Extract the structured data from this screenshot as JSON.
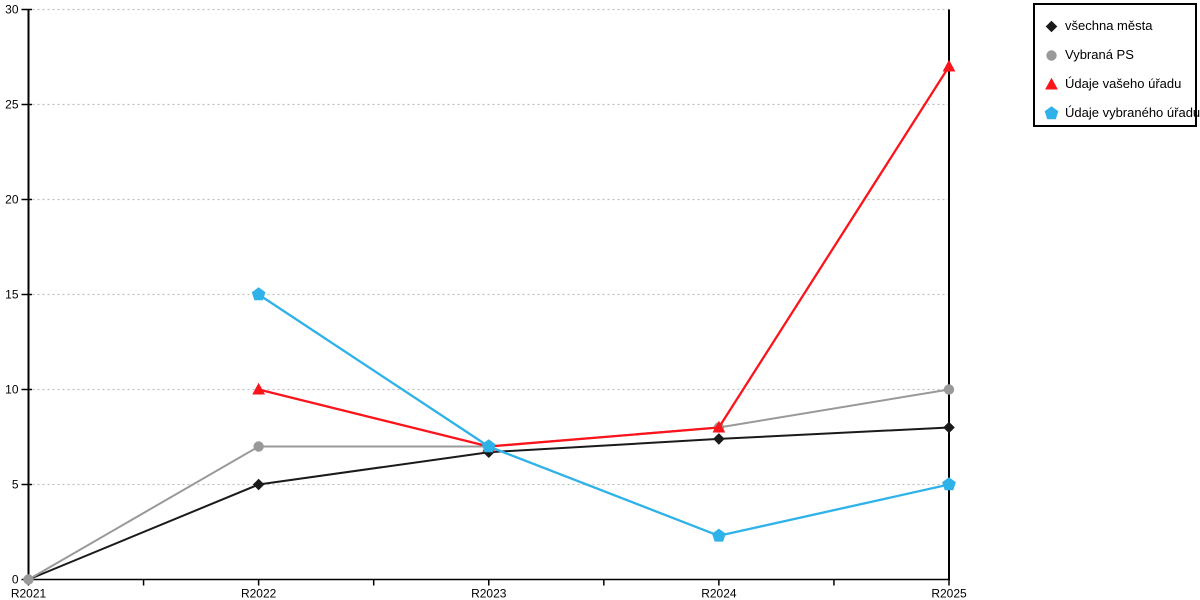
{
  "page": {
    "background": "#ffffff"
  },
  "chart_data": {
    "type": "line",
    "title": "",
    "xlabel": "",
    "ylabel": "",
    "x_categories": [
      "R2021",
      "R2022",
      "R2023",
      "R2024",
      "R2025"
    ],
    "y_axis": {
      "min": 0,
      "max": 30,
      "tick_step": 5,
      "tick_labels": [
        "0",
        "5",
        "10",
        "15",
        "20",
        "25",
        "30"
      ]
    },
    "grid": {
      "horizontal": "dotted",
      "color": "#bfbfbf"
    },
    "axis_color": "#000000",
    "legend": {
      "position": "top-right",
      "border_color": "#000000",
      "background": "#ffffff"
    },
    "series": [
      {
        "name": "všechna města",
        "color": "#1a1a1a",
        "marker": "diamond",
        "line_width": 2,
        "values": [
          0,
          5,
          6.7,
          7.4,
          8
        ]
      },
      {
        "name": "Vybraná PS",
        "color": "#999999",
        "marker": "circle",
        "line_width": 2,
        "values": [
          0,
          7,
          7,
          8,
          10
        ]
      },
      {
        "name": "Údaje vašeho úřadu",
        "color": "#fa141b",
        "marker": "triangle",
        "line_width": 2.3,
        "values": [
          null,
          10,
          7,
          8,
          27
        ]
      },
      {
        "name": "Údaje vybraného úřadu",
        "color": "#2eb2e8",
        "marker": "pentagon",
        "line_width": 2.3,
        "values": [
          null,
          15,
          7,
          2.3,
          5
        ]
      }
    ]
  }
}
